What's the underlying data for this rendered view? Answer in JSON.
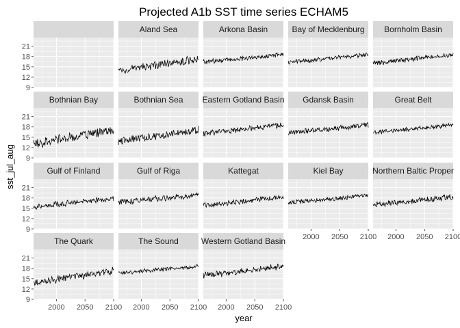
{
  "chart_data": {
    "type": "line",
    "title": "Projected A1b SST time series ECHAM5",
    "xlabel": "year",
    "ylabel": "sst_jul_aug",
    "xlim": [
      1960,
      2100
    ],
    "ylim": [
      9,
      23.5
    ],
    "xticks": [
      2000,
      2050,
      2100
    ],
    "yticks": [
      9,
      12,
      15,
      18,
      21
    ],
    "grid": true,
    "facet_columns": 5,
    "colors": {
      "line": "#000000",
      "panel": "#ebebeb",
      "grid_major": "#ffffff",
      "strip": "#d9d9d9",
      "tick": "#4d4d4d"
    },
    "panels": [
      {
        "name": "",
        "has_data": false,
        "start": 0,
        "end": 0,
        "noise": 0
      },
      {
        "name": "Aland Sea",
        "has_data": true,
        "start": 13.8,
        "end": 17.4,
        "noise": 1.3
      },
      {
        "name": "Arkona Basin",
        "has_data": true,
        "start": 16.4,
        "end": 18.6,
        "noise": 0.8
      },
      {
        "name": "Bay of Mecklenburg",
        "has_data": true,
        "start": 16.3,
        "end": 18.6,
        "noise": 0.8
      },
      {
        "name": "Bornholm Basin",
        "has_data": true,
        "start": 16.0,
        "end": 18.6,
        "noise": 0.9
      },
      {
        "name": "Bothnian Bay",
        "has_data": true,
        "start": 13.0,
        "end": 17.2,
        "noise": 1.7
      },
      {
        "name": "Bothnian Sea",
        "has_data": true,
        "start": 13.8,
        "end": 17.2,
        "noise": 1.3
      },
      {
        "name": "Eastern Gotland Basin",
        "has_data": true,
        "start": 16.0,
        "end": 18.6,
        "noise": 0.9
      },
      {
        "name": "Gdansk Basin",
        "has_data": true,
        "start": 16.2,
        "end": 18.6,
        "noise": 0.9
      },
      {
        "name": "Great Belt",
        "has_data": true,
        "start": 16.4,
        "end": 18.5,
        "noise": 0.7
      },
      {
        "name": "Gulf of Finland",
        "has_data": true,
        "start": 15.5,
        "end": 17.8,
        "noise": 1.0
      },
      {
        "name": "Gulf of Riga",
        "has_data": true,
        "start": 16.8,
        "end": 18.8,
        "noise": 1.0
      },
      {
        "name": "Kattegat",
        "has_data": true,
        "start": 15.8,
        "end": 18.2,
        "noise": 0.9
      },
      {
        "name": "Kiel Bay",
        "has_data": true,
        "start": 16.6,
        "end": 18.7,
        "noise": 0.8
      },
      {
        "name": "Northern Baltic Proper",
        "has_data": true,
        "start": 16.0,
        "end": 18.3,
        "noise": 1.0
      },
      {
        "name": "The Quark",
        "has_data": true,
        "start": 13.8,
        "end": 17.4,
        "noise": 1.3
      },
      {
        "name": "The Sound",
        "has_data": true,
        "start": 16.6,
        "end": 18.6,
        "noise": 0.7
      },
      {
        "name": "Western Gotland Basin",
        "has_data": true,
        "start": 16.0,
        "end": 18.6,
        "noise": 1.0
      }
    ]
  }
}
